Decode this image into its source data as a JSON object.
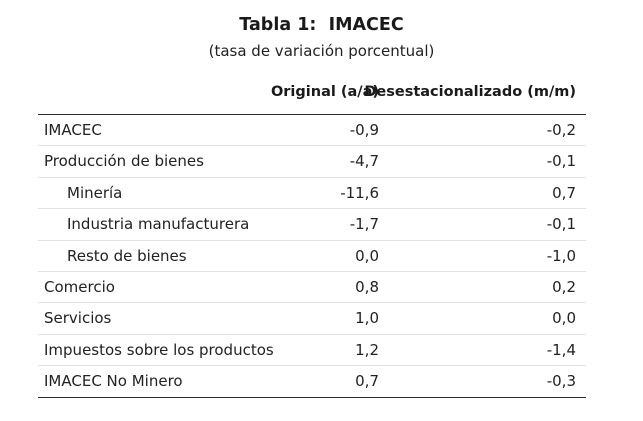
{
  "table": {
    "title": "Tabla 1:  IMACEC",
    "subtitle": "(tasa de variación porcentual)",
    "columns": [
      "",
      "Original (a/a)",
      "Desestacionalizado (m/m)"
    ],
    "rows": [
      {
        "label": "IMACEC",
        "indent": false,
        "original": "-0,9",
        "desestacionalizado": "-0,2"
      },
      {
        "label": "Producción de bienes",
        "indent": false,
        "original": "-4,7",
        "desestacionalizado": "-0,1"
      },
      {
        "label": "Minería",
        "indent": true,
        "original": "-11,6",
        "desestacionalizado": "0,7"
      },
      {
        "label": "Industria manufacturera",
        "indent": true,
        "original": "-1,7",
        "desestacionalizado": "-0,1"
      },
      {
        "label": "Resto de bienes",
        "indent": true,
        "original": "0,0",
        "desestacionalizado": "-1,0"
      },
      {
        "label": "Comercio",
        "indent": false,
        "original": "0,8",
        "desestacionalizado": "0,2"
      },
      {
        "label": "Servicios",
        "indent": false,
        "original": "1,0",
        "desestacionalizado": "0,0"
      },
      {
        "label": "Impuestos sobre los productos",
        "indent": false,
        "original": "1,2",
        "desestacionalizado": "-1,4"
      },
      {
        "label": "IMACEC No Minero",
        "indent": false,
        "original": "0,7",
        "desestacionalizado": "-0,3"
      }
    ]
  }
}
